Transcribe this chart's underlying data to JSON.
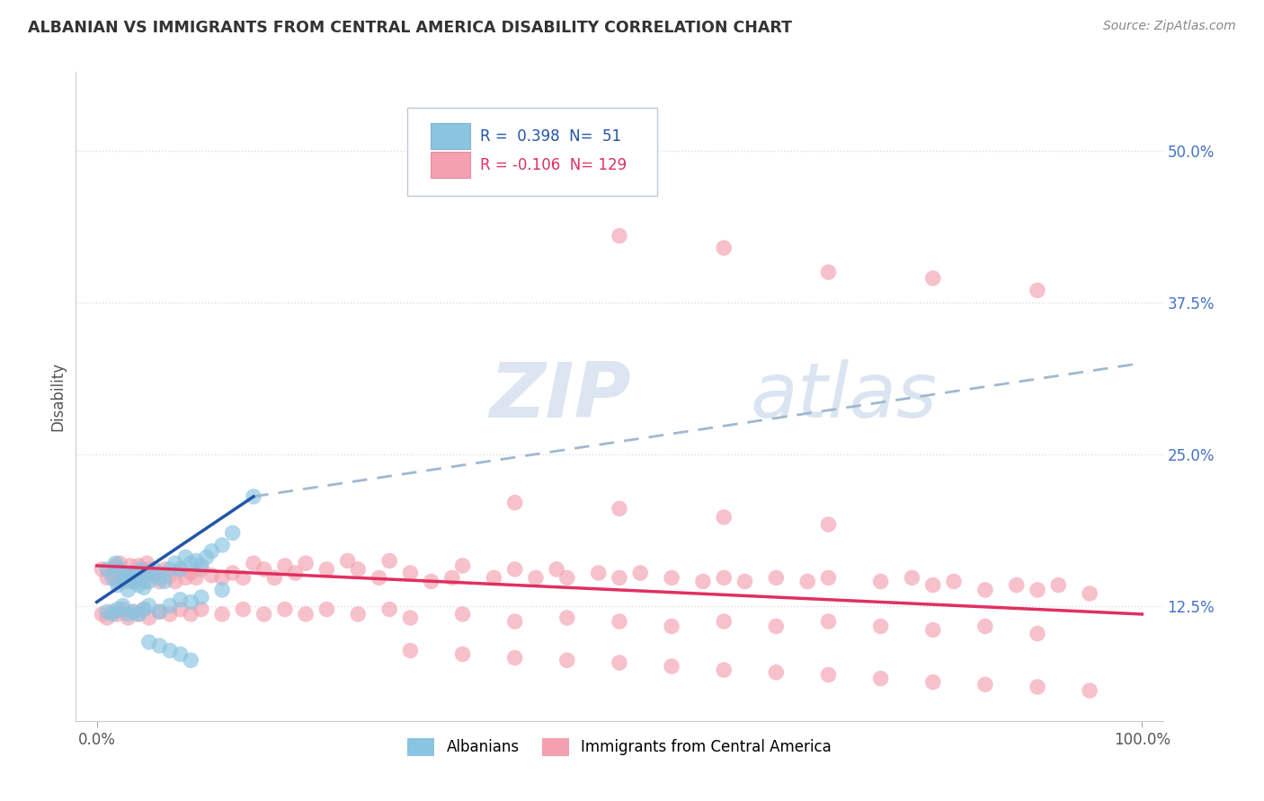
{
  "title": "ALBANIAN VS IMMIGRANTS FROM CENTRAL AMERICA DISABILITY CORRELATION CHART",
  "source": "Source: ZipAtlas.com",
  "ylabel": "Disability",
  "xlim": [
    -0.02,
    1.02
  ],
  "ylim": [
    0.03,
    0.565
  ],
  "x_tick_labels": [
    "0.0%",
    "100.0%"
  ],
  "y_ticks_right": [
    0.125,
    0.25,
    0.375,
    0.5
  ],
  "y_tick_labels_right": [
    "12.5%",
    "25.0%",
    "37.5%",
    "50.0%"
  ],
  "blue_R": "0.398",
  "blue_N": "51",
  "pink_R": "-0.106",
  "pink_N": "129",
  "blue_color": "#89c4e1",
  "pink_color": "#f4a0b0",
  "blue_line_color": "#2255aa",
  "pink_line_color": "#e03060",
  "dashed_color": "#a0b8d0",
  "legend_label_blue": "Albanians",
  "legend_label_pink": "Immigrants from Central America",
  "title_color": "#333333",
  "source_color": "#888888",
  "axis_label_color": "#555555",
  "tick_color_right": "#4472c4",
  "grid_color": "#dddddd",
  "blue_line_x0": 0.0,
  "blue_line_y0": 0.128,
  "blue_line_x1": 0.15,
  "blue_line_y1": 0.215,
  "dash_line_x0": 0.15,
  "dash_line_y0": 0.215,
  "dash_line_x1": 1.0,
  "dash_line_y1": 0.325,
  "pink_line_x0": 0.0,
  "pink_line_y0": 0.158,
  "pink_line_x1": 1.0,
  "pink_line_y1": 0.118,
  "blue_scatter_x": [
    0.01,
    0.015,
    0.018,
    0.02,
    0.022,
    0.025,
    0.028,
    0.03,
    0.032,
    0.035,
    0.038,
    0.04,
    0.042,
    0.045,
    0.048,
    0.05,
    0.055,
    0.06,
    0.065,
    0.07,
    0.075,
    0.08,
    0.085,
    0.09,
    0.095,
    0.1,
    0.105,
    0.11,
    0.12,
    0.13,
    0.15,
    0.01,
    0.015,
    0.02,
    0.025,
    0.03,
    0.035,
    0.04,
    0.045,
    0.05,
    0.06,
    0.07,
    0.08,
    0.09,
    0.1,
    0.12,
    0.05,
    0.06,
    0.07,
    0.08,
    0.09
  ],
  "blue_scatter_y": [
    0.155,
    0.148,
    0.16,
    0.142,
    0.155,
    0.145,
    0.15,
    0.138,
    0.152,
    0.145,
    0.148,
    0.142,
    0.155,
    0.14,
    0.15,
    0.145,
    0.155,
    0.148,
    0.145,
    0.155,
    0.16,
    0.155,
    0.165,
    0.16,
    0.162,
    0.158,
    0.165,
    0.17,
    0.175,
    0.185,
    0.215,
    0.12,
    0.118,
    0.122,
    0.125,
    0.118,
    0.12,
    0.118,
    0.122,
    0.125,
    0.12,
    0.125,
    0.13,
    0.128,
    0.132,
    0.138,
    0.095,
    0.092,
    0.088,
    0.085,
    0.08
  ],
  "pink_scatter_x": [
    0.005,
    0.01,
    0.015,
    0.018,
    0.02,
    0.022,
    0.025,
    0.028,
    0.03,
    0.032,
    0.035,
    0.038,
    0.04,
    0.042,
    0.045,
    0.048,
    0.05,
    0.055,
    0.06,
    0.065,
    0.07,
    0.075,
    0.08,
    0.085,
    0.09,
    0.095,
    0.1,
    0.11,
    0.12,
    0.13,
    0.14,
    0.15,
    0.16,
    0.17,
    0.18,
    0.19,
    0.2,
    0.22,
    0.24,
    0.25,
    0.27,
    0.28,
    0.3,
    0.32,
    0.34,
    0.35,
    0.38,
    0.4,
    0.42,
    0.44,
    0.45,
    0.48,
    0.5,
    0.52,
    0.55,
    0.58,
    0.6,
    0.62,
    0.65,
    0.68,
    0.7,
    0.75,
    0.78,
    0.8,
    0.82,
    0.85,
    0.88,
    0.9,
    0.92,
    0.95,
    0.005,
    0.01,
    0.015,
    0.02,
    0.025,
    0.03,
    0.035,
    0.04,
    0.045,
    0.05,
    0.06,
    0.07,
    0.08,
    0.09,
    0.1,
    0.12,
    0.14,
    0.16,
    0.18,
    0.2,
    0.22,
    0.25,
    0.28,
    0.3,
    0.35,
    0.4,
    0.45,
    0.5,
    0.55,
    0.6,
    0.65,
    0.7,
    0.75,
    0.8,
    0.85,
    0.9,
    0.3,
    0.35,
    0.4,
    0.45,
    0.5,
    0.55,
    0.6,
    0.65,
    0.7,
    0.75,
    0.8,
    0.85,
    0.9,
    0.95,
    0.5,
    0.6,
    0.7,
    0.8,
    0.9,
    0.4,
    0.5,
    0.6,
    0.7
  ],
  "pink_scatter_y": [
    0.155,
    0.148,
    0.152,
    0.158,
    0.145,
    0.16,
    0.148,
    0.152,
    0.145,
    0.158,
    0.152,
    0.145,
    0.158,
    0.15,
    0.145,
    0.16,
    0.155,
    0.15,
    0.145,
    0.155,
    0.15,
    0.145,
    0.155,
    0.148,
    0.152,
    0.148,
    0.155,
    0.15,
    0.148,
    0.152,
    0.148,
    0.16,
    0.155,
    0.148,
    0.158,
    0.152,
    0.16,
    0.155,
    0.162,
    0.155,
    0.148,
    0.162,
    0.152,
    0.145,
    0.148,
    0.158,
    0.148,
    0.155,
    0.148,
    0.155,
    0.148,
    0.152,
    0.148,
    0.152,
    0.148,
    0.145,
    0.148,
    0.145,
    0.148,
    0.145,
    0.148,
    0.145,
    0.148,
    0.142,
    0.145,
    0.138,
    0.142,
    0.138,
    0.142,
    0.135,
    0.118,
    0.115,
    0.12,
    0.118,
    0.122,
    0.115,
    0.12,
    0.118,
    0.122,
    0.115,
    0.12,
    0.118,
    0.122,
    0.118,
    0.122,
    0.118,
    0.122,
    0.118,
    0.122,
    0.118,
    0.122,
    0.118,
    0.122,
    0.115,
    0.118,
    0.112,
    0.115,
    0.112,
    0.108,
    0.112,
    0.108,
    0.112,
    0.108,
    0.105,
    0.108,
    0.102,
    0.088,
    0.085,
    0.082,
    0.08,
    0.078,
    0.075,
    0.072,
    0.07,
    0.068,
    0.065,
    0.062,
    0.06,
    0.058,
    0.055,
    0.43,
    0.42,
    0.4,
    0.395,
    0.385,
    0.21,
    0.205,
    0.198,
    0.192
  ]
}
